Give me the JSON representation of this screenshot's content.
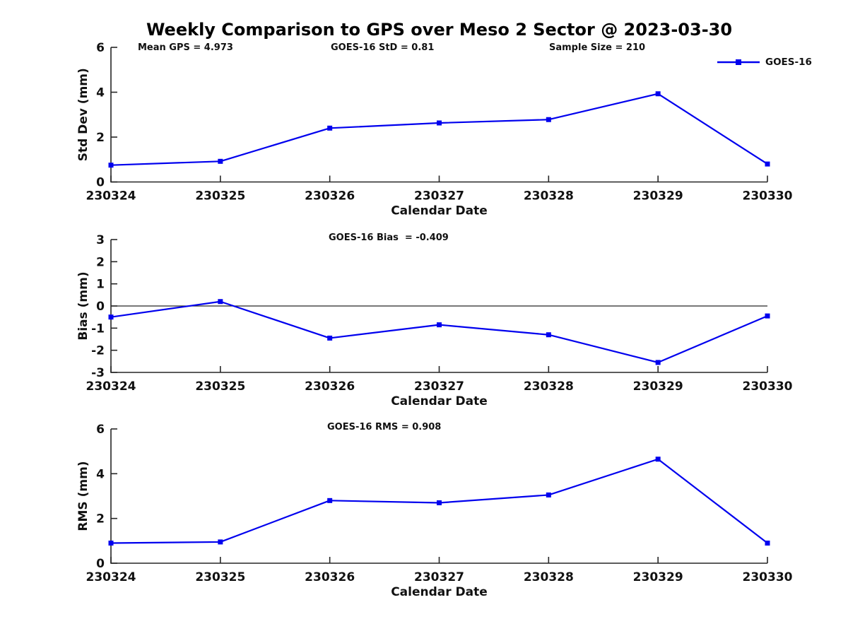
{
  "title": "Weekly Comparison to GPS over Meso 2 Sector @ 2023-03-30",
  "colors": {
    "line": "#0000ee",
    "axis": "#262626",
    "text": "#111111"
  },
  "legend": {
    "label": "GOES-16"
  },
  "chart_data": [
    {
      "type": "line",
      "ylabel": "Std Dev (mm)",
      "xlabel": "Calendar Date",
      "categories": [
        "230324",
        "230325",
        "230326",
        "230327",
        "230328",
        "230329",
        "230330"
      ],
      "series": [
        {
          "name": "GOES-16",
          "color": "#0000ee",
          "marker": "square",
          "values": [
            0.75,
            0.92,
            2.4,
            2.63,
            2.78,
            3.93,
            0.8
          ]
        }
      ],
      "ylim": [
        0,
        6
      ],
      "yticks": [
        0,
        2,
        4,
        6
      ],
      "grid": false,
      "legend_position": "top-right",
      "annotations": [
        "Mean GPS = 4.973",
        "GOES-16 StD = 0.81",
        "Sample Size = 210"
      ]
    },
    {
      "type": "line",
      "ylabel": "Bias (mm)",
      "xlabel": "Calendar Date",
      "categories": [
        "230324",
        "230325",
        "230326",
        "230327",
        "230328",
        "230329",
        "230330"
      ],
      "series": [
        {
          "name": "GOES-16",
          "color": "#0000ee",
          "marker": "square",
          "values": [
            -0.5,
            0.2,
            -1.45,
            -0.85,
            -1.3,
            -2.55,
            -0.45
          ]
        }
      ],
      "ylim": [
        -3,
        3
      ],
      "yticks": [
        -3,
        -2,
        -1,
        0,
        1,
        2,
        3
      ],
      "zero_line": true,
      "grid": false,
      "annotations": [
        "GOES-16 Bias  = -0.409"
      ]
    },
    {
      "type": "line",
      "ylabel": "RMS (mm)",
      "xlabel": "Calendar Date",
      "categories": [
        "230324",
        "230325",
        "230326",
        "230327",
        "230328",
        "230329",
        "230330"
      ],
      "series": [
        {
          "name": "GOES-16",
          "color": "#0000ee",
          "marker": "square",
          "values": [
            0.9,
            0.95,
            2.8,
            2.7,
            3.05,
            4.65,
            0.9
          ]
        }
      ],
      "ylim": [
        0,
        6
      ],
      "yticks": [
        0,
        2,
        4,
        6
      ],
      "grid": false,
      "annotations": [
        "GOES-16 RMS = 0.908"
      ]
    }
  ]
}
